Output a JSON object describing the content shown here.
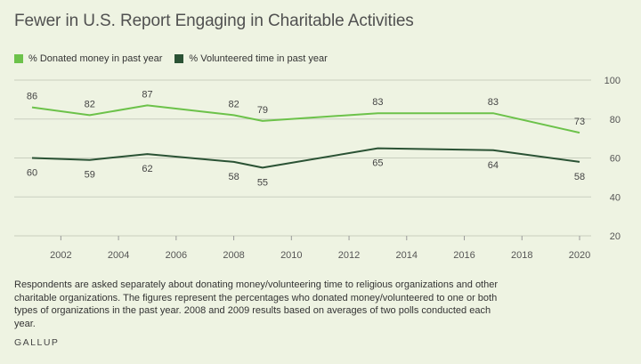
{
  "title": "Fewer in U.S. Report Engaging in Charitable Activities",
  "legend": {
    "donated": "% Donated money in past year",
    "volunteered": "% Volunteered time in past year"
  },
  "colors": {
    "donated": "#6cc24a",
    "volunteered": "#2a5234",
    "grid": "#c9cfbf"
  },
  "note": "Respondents are asked separately about donating money/volunteering time to religious organizations and other charitable organizations. The figures represent the percentages who donated money/volunteered to one or both types of organizations in the past year. 2008 and 2009 results based on averages of two polls conducted each year.",
  "brand": "GALLUP",
  "chart_data": {
    "type": "line",
    "title": "Fewer in U.S. Report Engaging in Charitable Activities",
    "xlabel": "",
    "ylabel": "",
    "xlim": [
      2001,
      2020
    ],
    "ylim": [
      20,
      100
    ],
    "x_ticks": [
      2002,
      2004,
      2006,
      2008,
      2010,
      2012,
      2014,
      2016,
      2018,
      2020
    ],
    "y_ticks": [
      20,
      40,
      60,
      80,
      100
    ],
    "grid": true,
    "legend_position": "top-left",
    "series": [
      {
        "name": "% Donated money in past year",
        "x": [
          2001,
          2003,
          2005,
          2008,
          2009,
          2013,
          2017,
          2020
        ],
        "values": [
          86,
          82,
          87,
          82,
          79,
          83,
          83,
          73
        ]
      },
      {
        "name": "% Volunteered time in past year",
        "x": [
          2001,
          2003,
          2005,
          2008,
          2009,
          2013,
          2017,
          2020
        ],
        "values": [
          60,
          59,
          62,
          58,
          55,
          65,
          64,
          58
        ]
      }
    ]
  }
}
